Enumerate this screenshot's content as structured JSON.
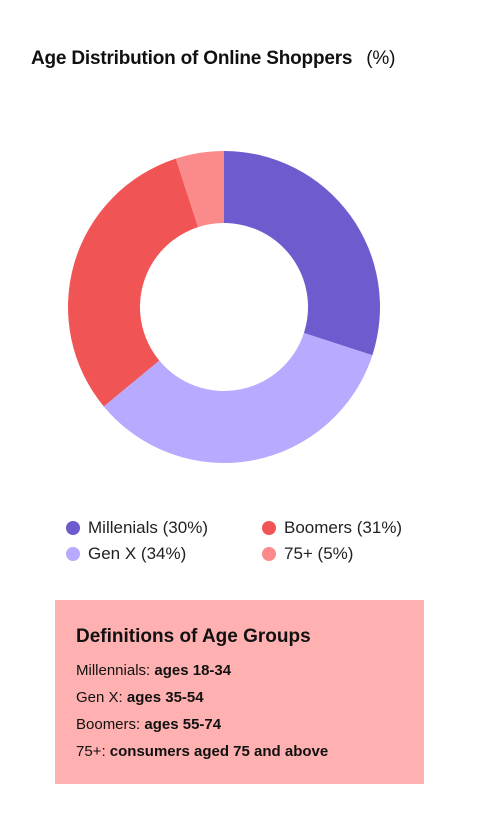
{
  "chart_data": {
    "type": "pie",
    "title": "Age Distribution of Online Shoppers",
    "unit": "(%)",
    "categories": [
      "Millenials",
      "Gen X",
      "Boomers",
      "75+"
    ],
    "values": [
      30,
      34,
      31,
      5
    ],
    "colors": [
      "#6e5ccf",
      "#b8aaff",
      "#f15454",
      "#fb8a8a"
    ],
    "legend": [
      {
        "label": "Millenials (30%)",
        "color": "#6e5ccf"
      },
      {
        "label": "Boomers (31%)",
        "color": "#f15454"
      },
      {
        "label": "Gen X  (34%)",
        "color": "#b8aaff"
      },
      {
        "label": "75+ (5%)",
        "color": "#fb8a8a"
      }
    ],
    "legend_position": "bottom"
  },
  "definitions": {
    "title": "Definitions of Age Groups",
    "rows": [
      {
        "label": "Millennials:",
        "value": "ages 18-34"
      },
      {
        "label": "Gen X:",
        "value": "ages 35-54"
      },
      {
        "label": "Boomers:",
        "value": "ages 55-74"
      },
      {
        "label": "75+:",
        "value": "consumers aged 75 and above"
      }
    ],
    "background": "#ffb0b0"
  }
}
